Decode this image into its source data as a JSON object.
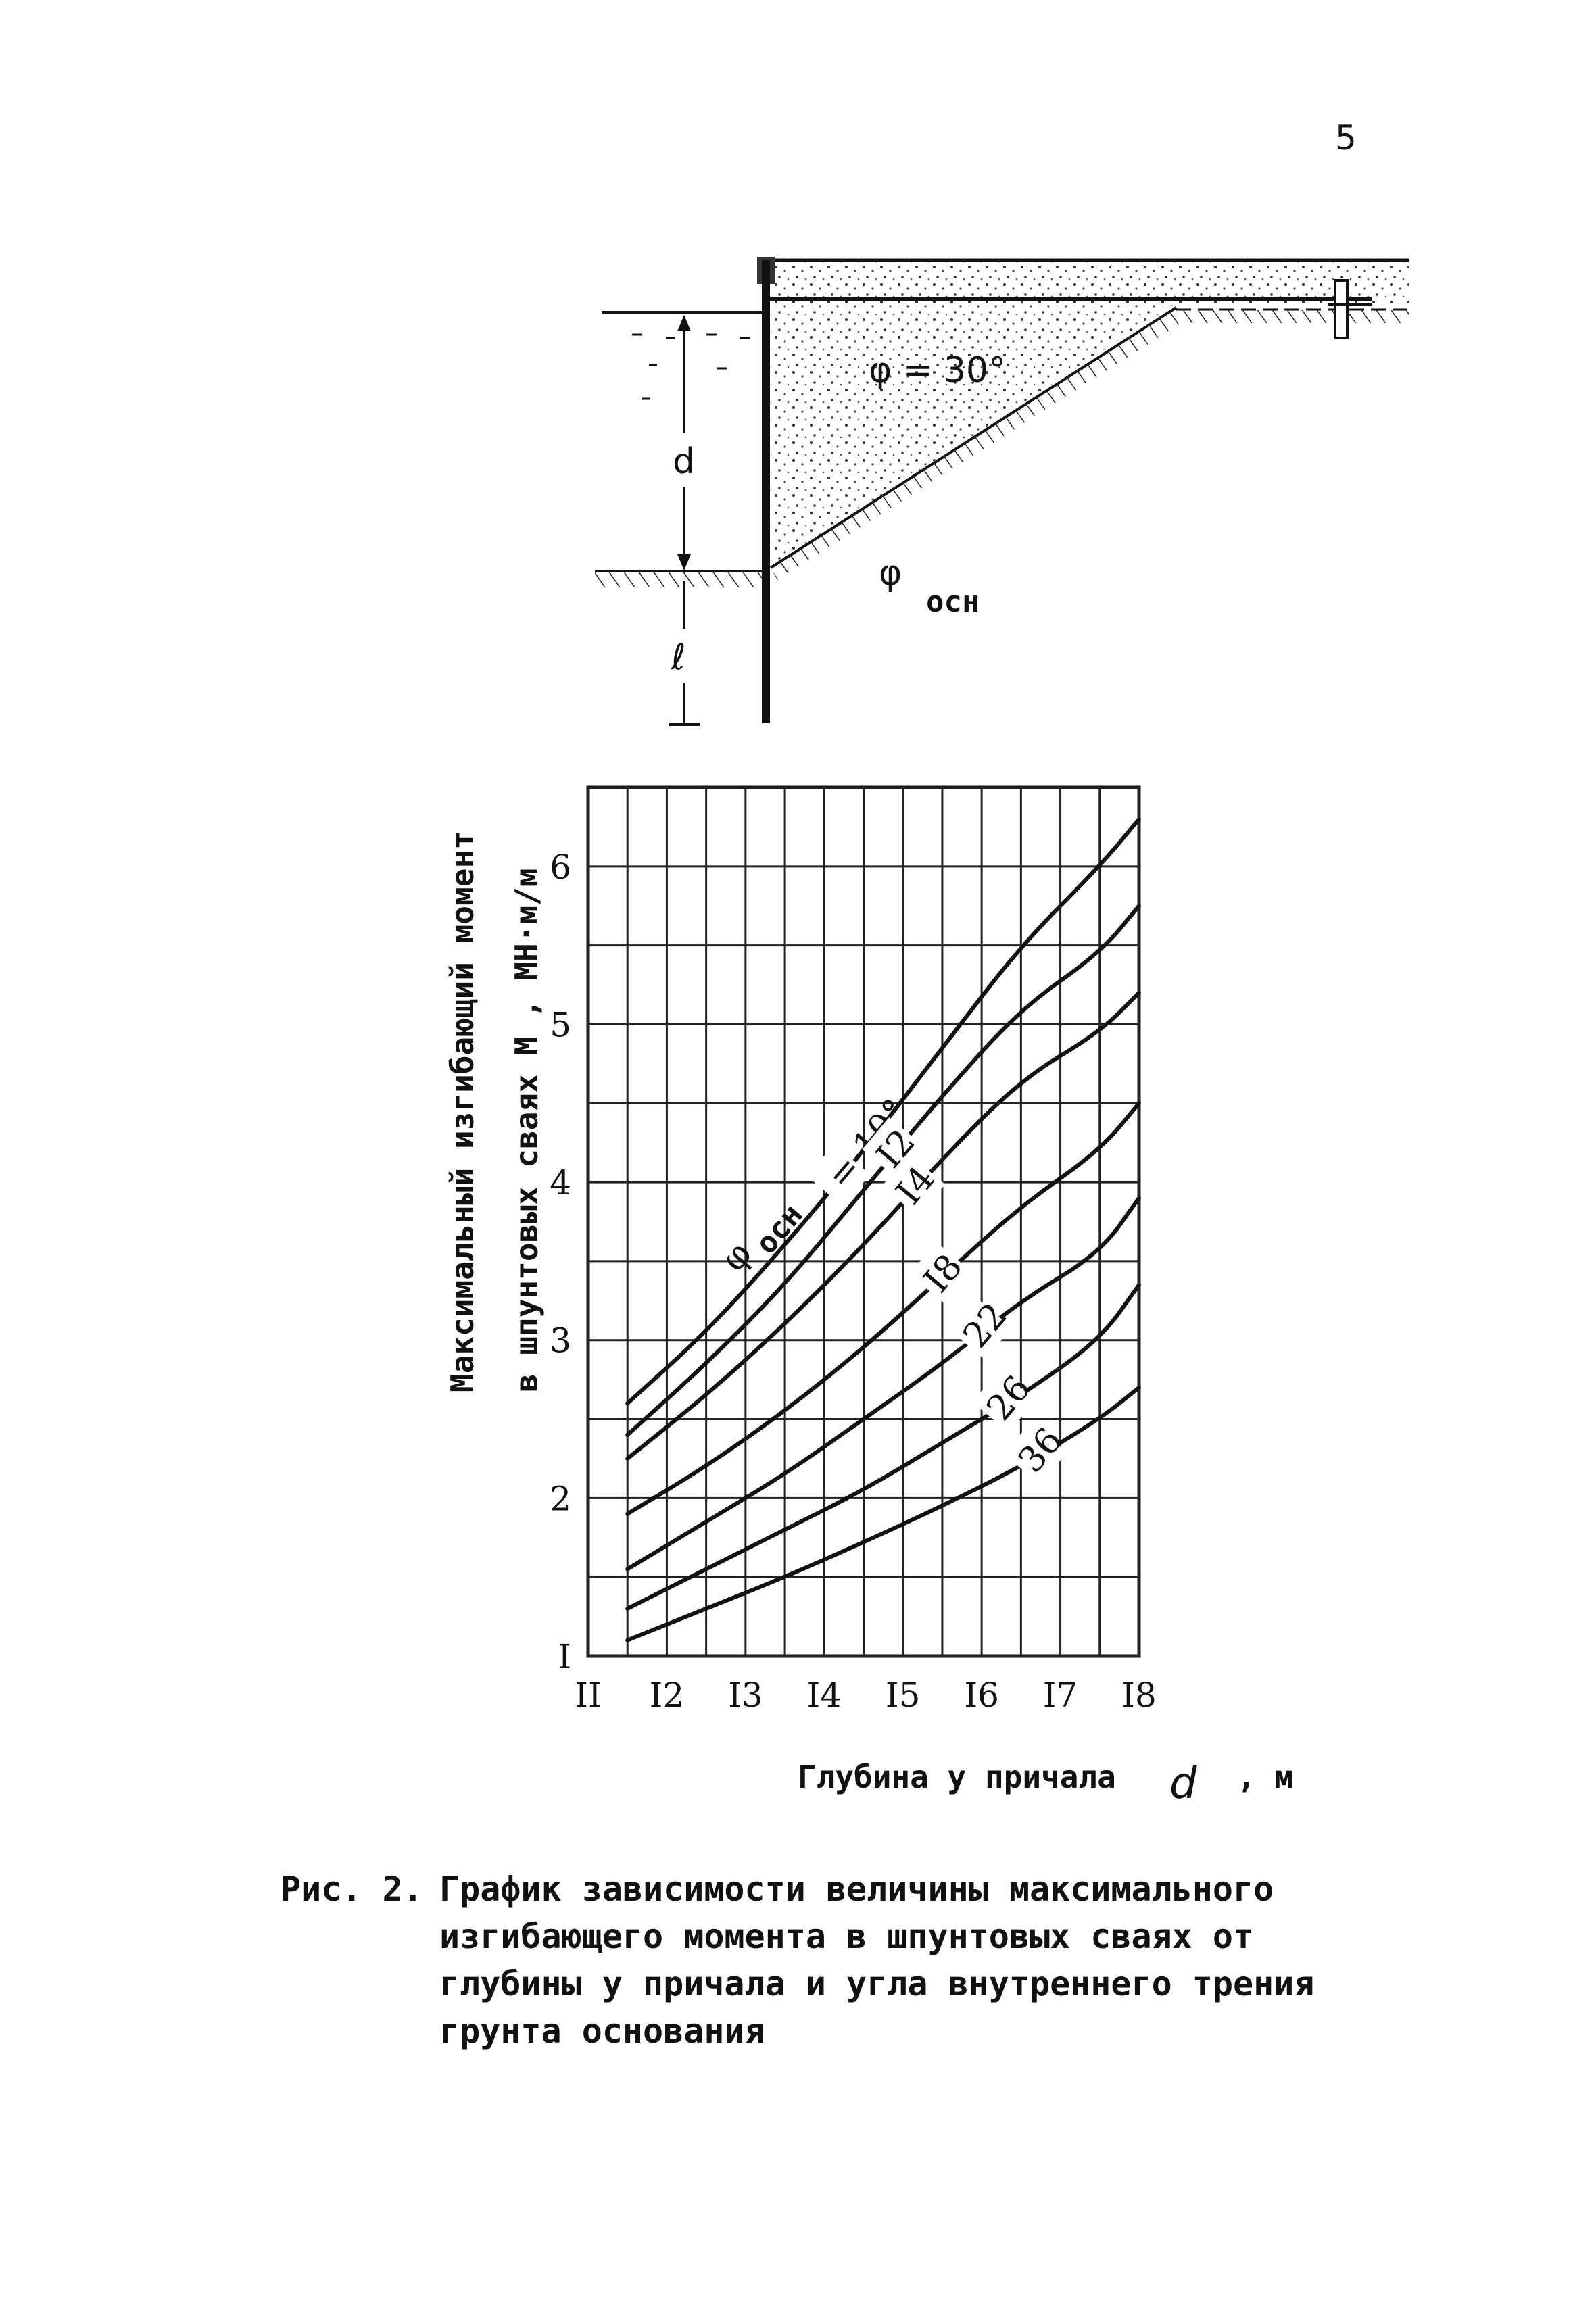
{
  "page": {
    "number": "5"
  },
  "diagram": {
    "phi_fill": "φ = 30°",
    "phi_base_symbol": "φ",
    "phi_base_sub": "осн",
    "depth_label": "d",
    "embed_label": "ℓ"
  },
  "chart_data": {
    "type": "line",
    "title": "",
    "xlabel": "Глубина у причала",
    "xlabel_symbol": "d",
    "xlabel_unit": ", м",
    "ylabel_line1": "Максимальный изгибающий момент",
    "ylabel_line2": "в шпунтовых сваях  M ,  МН·м/м",
    "xlim": [
      11,
      18
    ],
    "ylim": [
      1,
      6.5
    ],
    "grid": true,
    "x_ticks": [
      11,
      12,
      13,
      14,
      15,
      16,
      17,
      18
    ],
    "x_tick_labels": [
      "II",
      "I2",
      "I3",
      "I4",
      "I5",
      "I6",
      "I7",
      "I8"
    ],
    "y_ticks": [
      1,
      2,
      3,
      4,
      5,
      6
    ],
    "y_tick_labels": [
      "I",
      "2",
      "3",
      "4",
      "5",
      "6"
    ],
    "series_label_prefix": "φ",
    "series_label_sub": "осн",
    "series_label_eq": "= 10°",
    "series": [
      {
        "name": "10",
        "x": [
          11.5,
          12.5,
          13.5,
          14.5,
          15.5,
          16.5,
          17.5,
          18.0
        ],
        "y": [
          2.6,
          3.05,
          3.6,
          4.2,
          4.85,
          5.5,
          6.0,
          6.3
        ]
      },
      {
        "name": "I2",
        "x": [
          11.5,
          12.5,
          13.5,
          14.5,
          15.5,
          16.5,
          17.5,
          18.0
        ],
        "y": [
          2.4,
          2.85,
          3.35,
          3.95,
          4.55,
          5.1,
          5.45,
          5.75
        ]
      },
      {
        "name": "I4",
        "x": [
          11.5,
          12.5,
          13.5,
          14.5,
          15.5,
          16.5,
          17.5,
          18.0
        ],
        "y": [
          2.25,
          2.65,
          3.1,
          3.6,
          4.15,
          4.65,
          4.95,
          5.2
        ]
      },
      {
        "name": "I8",
        "x": [
          11.5,
          12.5,
          13.5,
          14.5,
          15.5,
          16.5,
          17.5,
          18.0
        ],
        "y": [
          1.9,
          2.2,
          2.55,
          2.95,
          3.4,
          3.85,
          4.2,
          4.5
        ]
      },
      {
        "name": "22",
        "x": [
          11.5,
          12.5,
          13.5,
          14.5,
          15.5,
          16.5,
          17.5,
          18.0
        ],
        "y": [
          1.55,
          1.85,
          2.15,
          2.5,
          2.85,
          3.25,
          3.55,
          3.9
        ]
      },
      {
        "name": "26",
        "x": [
          11.5,
          12.5,
          13.5,
          14.5,
          15.5,
          16.5,
          17.5,
          18.0
        ],
        "y": [
          1.3,
          1.55,
          1.8,
          2.05,
          2.35,
          2.65,
          3.0,
          3.35
        ]
      },
      {
        "name": "36",
        "x": [
          11.5,
          12.5,
          13.5,
          14.5,
          15.5,
          16.5,
          17.5,
          18.0
        ],
        "y": [
          1.1,
          1.3,
          1.5,
          1.72,
          1.95,
          2.2,
          2.5,
          2.7
        ]
      }
    ]
  },
  "caption": {
    "figure_no": "Рис. 2.",
    "text": "График зависимости величины максимального\nизгибающего момента в шпунтовых сваях от\nглубины у причала и угла внутреннего трения\nгрунта основания"
  }
}
